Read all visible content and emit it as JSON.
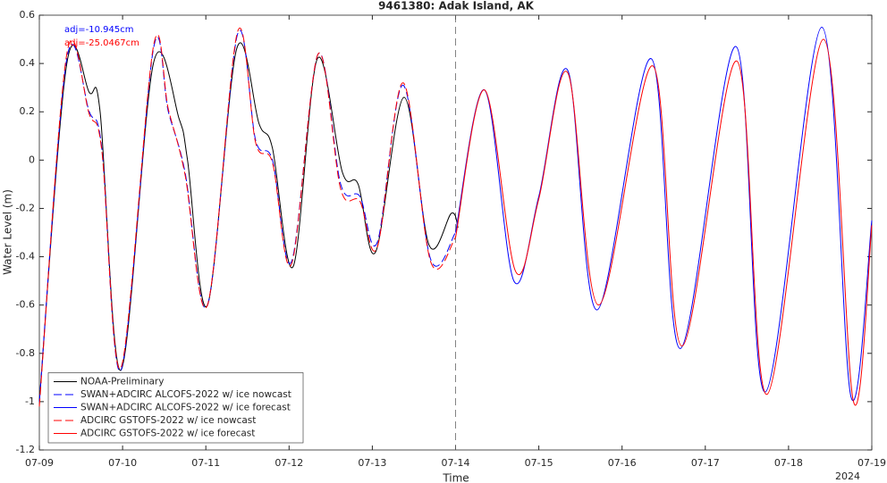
{
  "chart_data": {
    "type": "line",
    "title": "9461380: Adak Island, AK",
    "x_label": "Time",
    "y_label": "Water Level (m)",
    "x_annotation": "2024",
    "annotations": [
      {
        "text": "adj=-10.945cm",
        "color": "#0000ff"
      },
      {
        "text": "adj=-25.0467cm",
        "color": "#ff0000"
      }
    ],
    "xlim": [
      0,
      10
    ],
    "xticks": [
      {
        "value": 0,
        "label": "07-09"
      },
      {
        "value": 1,
        "label": "07-10"
      },
      {
        "value": 2,
        "label": "07-11"
      },
      {
        "value": 3,
        "label": "07-12"
      },
      {
        "value": 4,
        "label": "07-13"
      },
      {
        "value": 5,
        "label": "07-14"
      },
      {
        "value": 6,
        "label": "07-15"
      },
      {
        "value": 7,
        "label": "07-16"
      },
      {
        "value": 8,
        "label": "07-17"
      },
      {
        "value": 9,
        "label": "07-18"
      },
      {
        "value": 10,
        "label": "07-19"
      }
    ],
    "ylim": [
      -1.2,
      0.6
    ],
    "yticks": [
      -1.2,
      -1,
      -0.8,
      -0.6,
      -0.4,
      -0.2,
      0,
      0.2,
      0.4,
      0.6
    ],
    "vline": 5,
    "legend": "lower left",
    "series": [
      {
        "name": "NOAA-Preliminary",
        "color": "#000000",
        "dash": false,
        "x": [
          0,
          0.33,
          0.6,
          0.73,
          0.98,
          1.37,
          1.68,
          1.78,
          2.02,
          2.37,
          2.64,
          2.8,
          3.05,
          3.34,
          3.64,
          3.83,
          4.04,
          4.38,
          4.68,
          4.95,
          5.03
        ],
        "values": [
          -1.0,
          0.4,
          0.28,
          0.2,
          -0.87,
          0.4,
          0.17,
          0.0,
          -0.6,
          0.46,
          0.15,
          0.05,
          -0.44,
          0.42,
          -0.05,
          -0.1,
          -0.38,
          0.26,
          -0.35,
          -0.22,
          -0.28
        ]
      },
      {
        "name": "SWAN+ADCIRC ALCOFS-2022 w/ ice nowcast",
        "color": "#0000ff",
        "dash": true,
        "x": [
          0,
          0.33,
          0.6,
          0.75,
          0.98,
          1.37,
          1.55,
          1.75,
          2.02,
          2.38,
          2.6,
          2.8,
          3.03,
          3.35,
          3.62,
          3.85,
          4.06,
          4.37,
          4.7,
          5.0
        ],
        "values": [
          -1.0,
          0.42,
          0.2,
          0.05,
          -0.87,
          0.46,
          0.2,
          -0.05,
          -0.6,
          0.52,
          0.08,
          0.0,
          -0.42,
          0.44,
          -0.1,
          -0.15,
          -0.34,
          0.31,
          -0.41,
          -0.3
        ]
      },
      {
        "name": "SWAN+ADCIRC ALCOFS-2022 w/ ice forecast",
        "color": "#0000ff",
        "dash": false,
        "x": [
          5.0,
          5.35,
          5.7,
          6.0,
          6.35,
          6.7,
          7.35,
          7.7,
          8.37,
          8.72,
          9.4,
          9.75,
          10.0
        ],
        "values": [
          -0.3,
          0.29,
          -0.5,
          -0.15,
          0.37,
          -0.62,
          0.42,
          -0.78,
          0.47,
          -0.96,
          0.55,
          -0.98,
          -0.25
        ]
      },
      {
        "name": "ADCIRC GSTOFS-2022 w/ ice nowcast",
        "color": "#ff0000",
        "dash": true,
        "x": [
          0,
          0.33,
          0.6,
          0.75,
          0.98,
          1.37,
          1.55,
          1.75,
          2.02,
          2.38,
          2.6,
          2.8,
          3.03,
          3.35,
          3.62,
          3.85,
          4.06,
          4.37,
          4.7,
          5.0
        ],
        "values": [
          -1.02,
          0.44,
          0.19,
          0.04,
          -0.86,
          0.47,
          0.21,
          -0.06,
          -0.6,
          0.53,
          0.07,
          -0.01,
          -0.43,
          0.44,
          -0.12,
          -0.17,
          -0.36,
          0.32,
          -0.42,
          -0.32
        ]
      },
      {
        "name": "ADCIRC GSTOFS-2022 w/ ice forecast",
        "color": "#ff0000",
        "dash": false,
        "x": [
          5.0,
          5.35,
          5.72,
          6.0,
          6.35,
          6.72,
          7.37,
          7.72,
          8.38,
          8.74,
          9.42,
          9.78,
          10.0
        ],
        "values": [
          -0.32,
          0.29,
          -0.46,
          -0.16,
          0.36,
          -0.6,
          0.39,
          -0.77,
          0.41,
          -0.97,
          0.5,
          -1.0,
          -0.27
        ]
      }
    ]
  }
}
